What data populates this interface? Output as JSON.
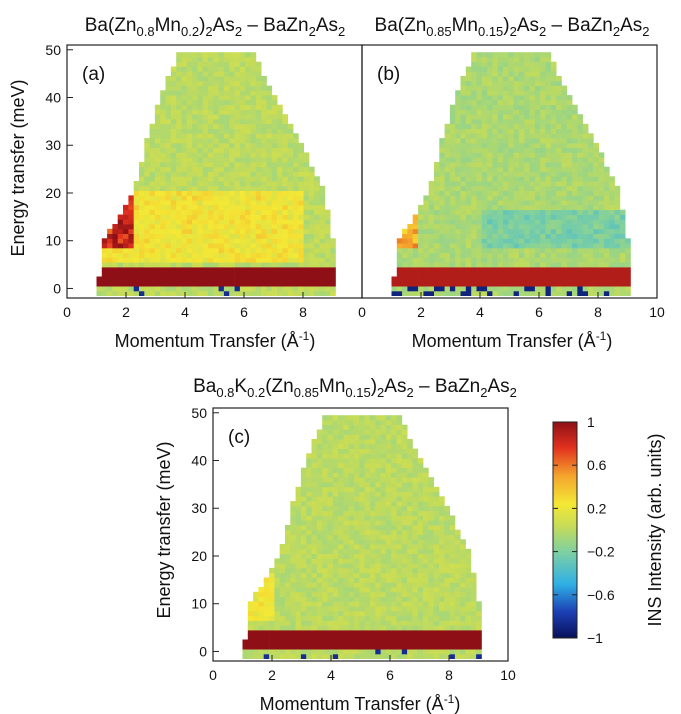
{
  "chart_data": [
    {
      "panel": "a",
      "type": "heatmap",
      "panel_label": "(a)",
      "title_runs": [
        [
          "Ba(Zn",
          ""
        ],
        [
          "0.8",
          "sub"
        ],
        [
          "Mn",
          ""
        ],
        [
          "0.2",
          "sub"
        ],
        [
          ")",
          ""
        ],
        [
          "2",
          "sub"
        ],
        [
          "As",
          ""
        ],
        [
          "2",
          "sub"
        ],
        [
          " – BaZn",
          ""
        ],
        [
          "2",
          "sub"
        ],
        [
          "As",
          ""
        ],
        [
          "2",
          "sub"
        ]
      ],
      "xlabel": "Momentum Transfer (Å",
      "xlabel_sup": "-1",
      "xlabel_end": ")",
      "ylabel": "Energy transfer (meV)",
      "xlim": [
        0,
        10
      ],
      "ylim": [
        -2,
        51
      ],
      "xticks": [
        "0",
        "2",
        "4",
        "6",
        "8"
      ],
      "yticks": [
        "0",
        "10",
        "20",
        "30",
        "40",
        "50"
      ],
      "q_range": [
        1.0,
        9.0
      ],
      "coverage_edges": {
        "e": [
          2,
          10,
          20,
          30,
          40,
          49
        ],
        "q_min": [
          1.0,
          1.2,
          2.2,
          2.6,
          3.1,
          3.7
        ],
        "q_max": [
          9.0,
          8.9,
          8.6,
          7.8,
          6.9,
          6.2
        ]
      },
      "features": [
        {
          "desc": "elastic line",
          "e": [
            0,
            4
          ],
          "q": [
            1.0,
            9.0
          ],
          "intensity": 1.0
        },
        {
          "desc": "low-Q magnetic excitation",
          "e": [
            8,
            20
          ],
          "q": [
            1.0,
            2.2
          ],
          "intensity": 0.75
        },
        {
          "desc": "broad band",
          "e": [
            5,
            20
          ],
          "q": [
            1.0,
            8.0
          ],
          "intensity": 0.3
        }
      ],
      "background_intensity": 0.0
    },
    {
      "panel": "b",
      "type": "heatmap",
      "panel_label": "(b)",
      "title_runs": [
        [
          "Ba(Zn",
          ""
        ],
        [
          "0.85",
          "sub"
        ],
        [
          "Mn",
          ""
        ],
        [
          "0.15",
          "sub"
        ],
        [
          ")",
          ""
        ],
        [
          "2",
          "sub"
        ],
        [
          "As",
          ""
        ],
        [
          "2",
          "sub"
        ],
        [
          " – BaZn",
          ""
        ],
        [
          "2",
          "sub"
        ],
        [
          "As",
          ""
        ],
        [
          "2",
          "sub"
        ]
      ],
      "xlabel": "Momentum Transfer (Å",
      "xlabel_sup": "-1",
      "xlabel_end": ")",
      "ylabel": "",
      "xlim": [
        0,
        10
      ],
      "ylim": [
        -2,
        51
      ],
      "xticks": [
        "0",
        "2",
        "4",
        "6",
        "8",
        "10"
      ],
      "yticks": [],
      "q_range": [
        1.0,
        9.0
      ],
      "coverage_edges": {
        "e": [
          2,
          10,
          20,
          30,
          40,
          49
        ],
        "q_min": [
          1.0,
          1.2,
          2.2,
          2.6,
          3.1,
          3.7
        ],
        "q_max": [
          9.0,
          8.9,
          8.6,
          7.8,
          6.9,
          6.2
        ]
      },
      "features": [
        {
          "desc": "elastic line",
          "e": [
            0,
            4
          ],
          "q": [
            1.0,
            9.0
          ],
          "intensity": 0.9
        },
        {
          "desc": "low-Q magnetic excitation",
          "e": [
            8,
            17
          ],
          "q": [
            1.0,
            1.8
          ],
          "intensity": 0.55
        },
        {
          "desc": "negative band",
          "e": [
            8,
            16
          ],
          "q": [
            4.0,
            9.0
          ],
          "intensity": -0.25
        }
      ],
      "background_intensity": -0.05
    },
    {
      "panel": "c",
      "type": "heatmap",
      "panel_label": "(c)",
      "title_runs": [
        [
          "Ba",
          ""
        ],
        [
          "0.8",
          "sub"
        ],
        [
          "K",
          ""
        ],
        [
          "0.2",
          "sub"
        ],
        [
          "(Zn",
          ""
        ],
        [
          "0.85",
          "sub"
        ],
        [
          "Mn",
          ""
        ],
        [
          "0.15",
          "sub"
        ],
        [
          ")",
          ""
        ],
        [
          "2",
          "sub"
        ],
        [
          "As",
          ""
        ],
        [
          "2",
          "sub"
        ],
        [
          " – BaZn",
          ""
        ],
        [
          "2",
          "sub"
        ],
        [
          "As",
          ""
        ],
        [
          "2",
          "sub"
        ]
      ],
      "xlabel": "Momentum Transfer (Å",
      "xlabel_sup": "-1",
      "xlabel_end": ")",
      "ylabel": "Energy transfer (meV)",
      "xlim": [
        0,
        10
      ],
      "ylim": [
        -2,
        51
      ],
      "xticks": [
        "0",
        "2",
        "4",
        "6",
        "8",
        "10"
      ],
      "yticks": [
        "0",
        "10",
        "20",
        "30",
        "40",
        "50"
      ],
      "q_range": [
        1.0,
        9.0
      ],
      "coverage_edges": {
        "e": [
          2,
          10,
          20,
          30,
          40,
          49
        ],
        "q_min": [
          1.0,
          1.2,
          2.2,
          2.6,
          3.1,
          3.7
        ],
        "q_max": [
          9.0,
          8.9,
          8.6,
          7.8,
          6.9,
          6.2
        ]
      },
      "features": [
        {
          "desc": "elastic line",
          "e": [
            0,
            4
          ],
          "q": [
            1.0,
            9.0
          ],
          "intensity": 1.0
        },
        {
          "desc": "low-Q signal",
          "e": [
            6,
            16
          ],
          "q": [
            1.0,
            2.0
          ],
          "intensity": 0.3
        }
      ],
      "background_intensity": 0.0
    }
  ],
  "colorbar": {
    "label": "INS Intensity (arb. units)",
    "range": [
      -1,
      1
    ],
    "ticks": [
      "1",
      "0.6",
      "0.2",
      "−0.2",
      "−0.6",
      "−1"
    ],
    "colormap": [
      "#08105a",
      "#1c3fb3",
      "#2fb0e6",
      "#7fd0a0",
      "#c7dc57",
      "#f4e835",
      "#f4a52d",
      "#e2311e",
      "#8e1016"
    ]
  }
}
